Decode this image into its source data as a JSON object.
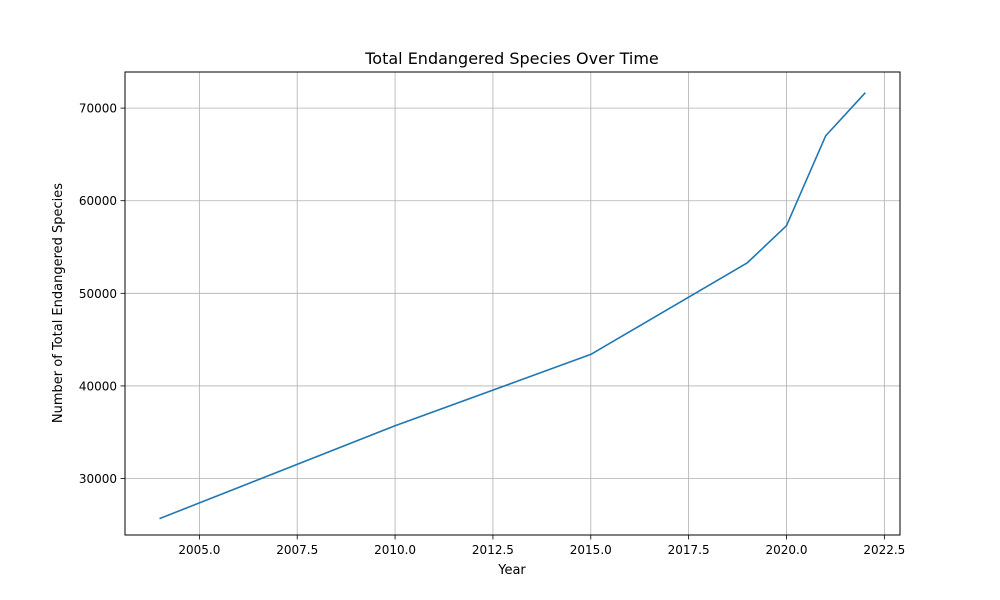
{
  "chart_data": {
    "type": "line",
    "title": "Total Endangered Species Over Time",
    "xlabel": "Year",
    "ylabel": "Number of Total Endangered Species",
    "xlim": [
      2003.1,
      2022.9
    ],
    "ylim": [
      23900,
      73900
    ],
    "x_ticks": [
      2005.0,
      2007.5,
      2010.0,
      2012.5,
      2015.0,
      2017.5,
      2020.0,
      2022.5
    ],
    "x_tick_labels": [
      "2005.0",
      "2007.5",
      "2010.0",
      "2012.5",
      "2015.0",
      "2017.5",
      "2020.0",
      "2022.5"
    ],
    "y_ticks": [
      30000,
      40000,
      50000,
      60000,
      70000
    ],
    "y_tick_labels": [
      "30000",
      "40000",
      "50000",
      "60000",
      "70000"
    ],
    "grid": true,
    "series": [
      {
        "color": "#1f77b4",
        "x": [
          2004,
          2010,
          2015,
          2019,
          2020,
          2021,
          2022
        ],
        "y": [
          25700,
          35700,
          43400,
          53300,
          57300,
          67000,
          71600
        ]
      }
    ]
  }
}
